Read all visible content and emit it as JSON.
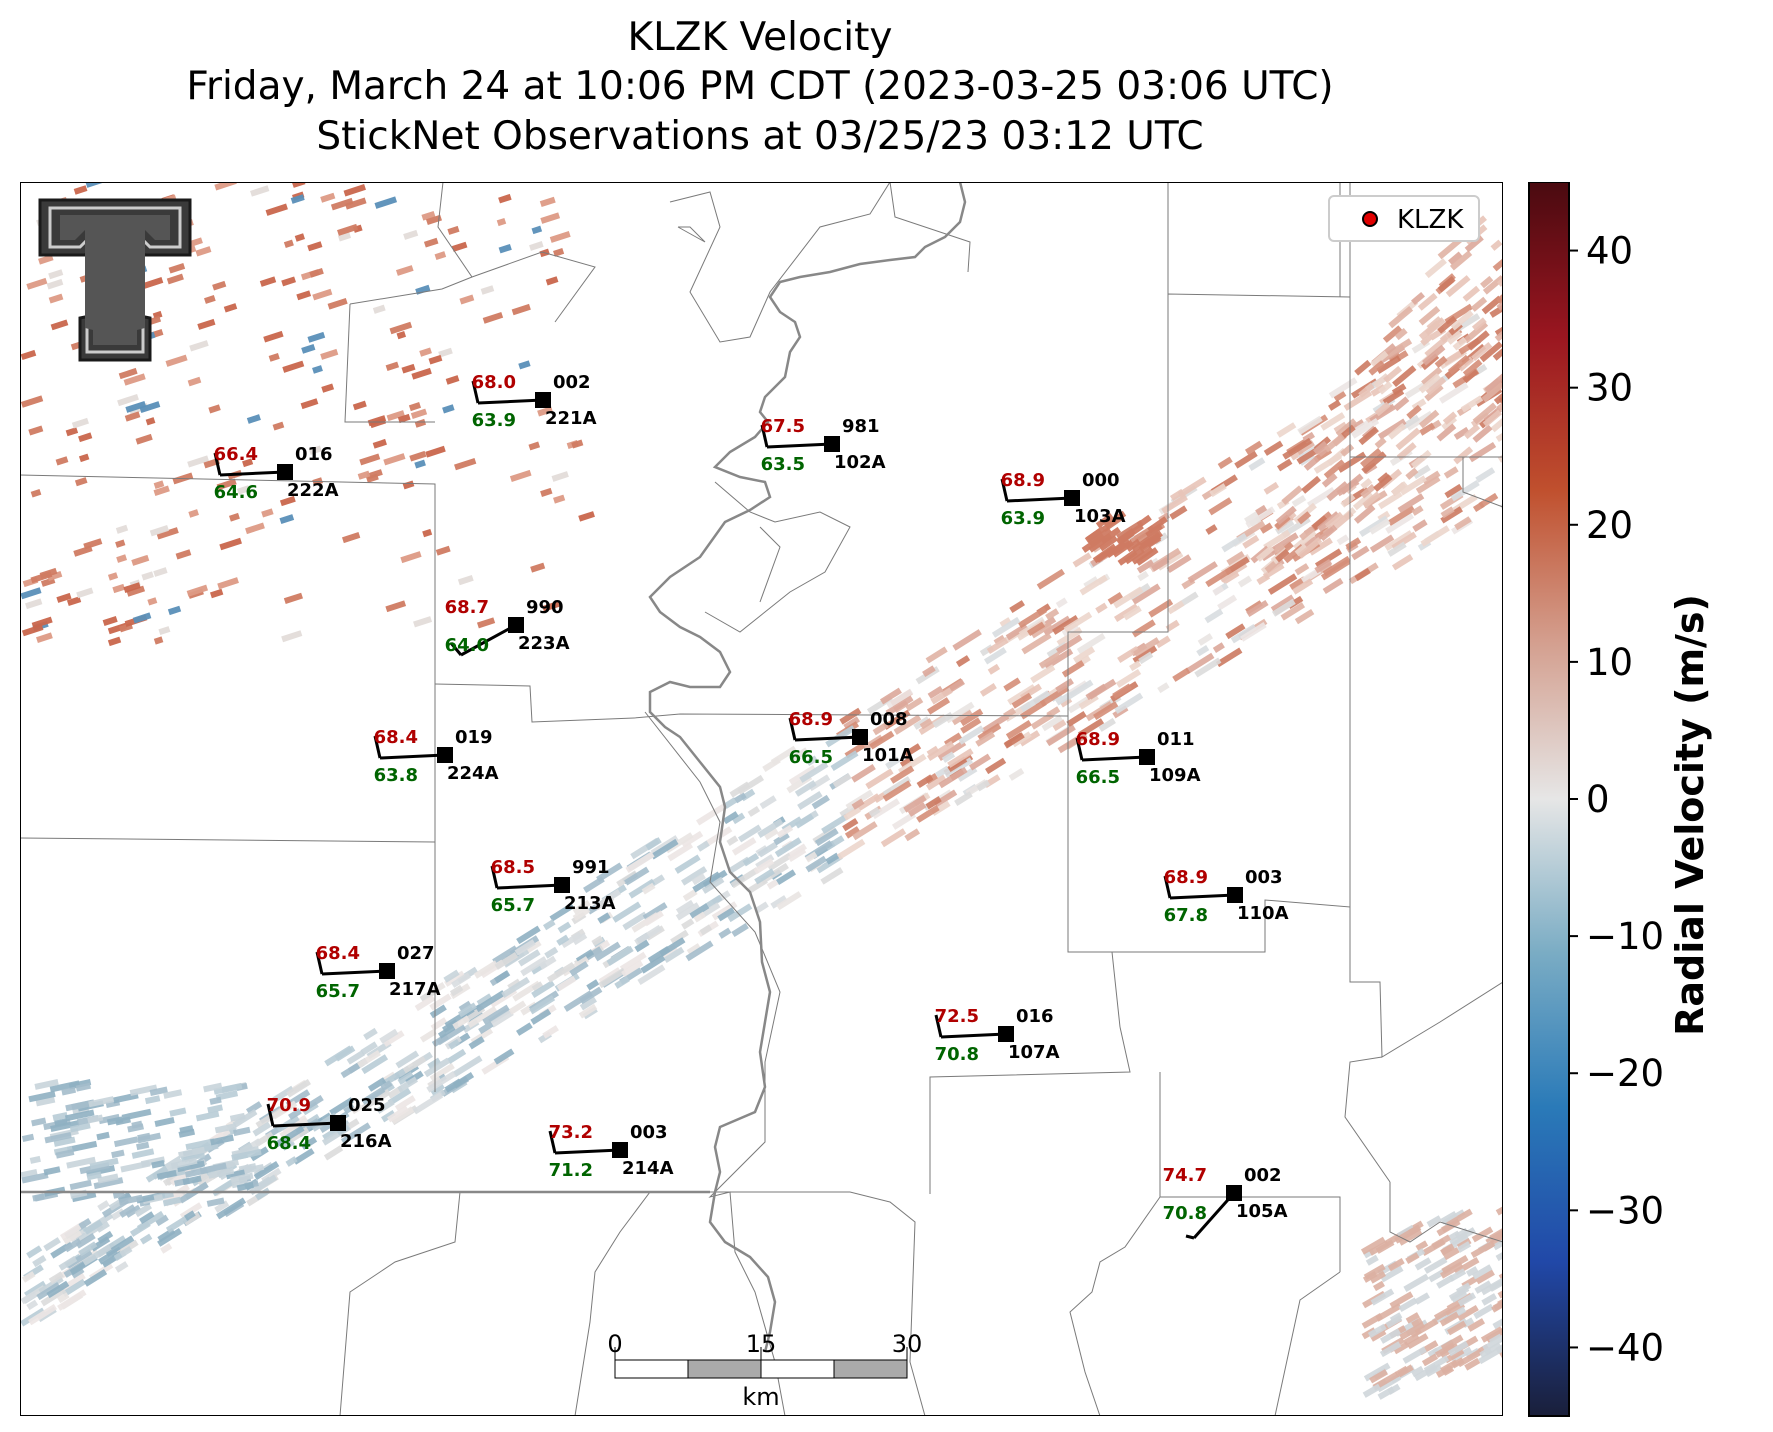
{
  "title": {
    "line1": "KLZK Velocity",
    "line2": "Friday, March 24 at 10:06 PM CDT (2023-03-25 03:06 UTC)",
    "line3": "StickNet Observations at 03/25/23 03:12 UTC"
  },
  "legend": {
    "label": "KLZK",
    "marker_color": "#e00000"
  },
  "scale_bar": {
    "ticks": [
      "0",
      "15",
      "30"
    ],
    "unit": "km"
  },
  "colorbar": {
    "label": "Radial Velocity (m/s)",
    "range": [
      -45,
      45
    ],
    "ticks": [
      "40",
      "30",
      "20",
      "10",
      "0",
      "−10",
      "−20",
      "−30",
      "−40"
    ],
    "colormap_stops": [
      "#1a1f3a",
      "#2148a8",
      "#2a7ab8",
      "#7aacc4",
      "#e6e6e6",
      "#d4a090",
      "#c0502e",
      "#9a1620",
      "#4a0a10"
    ]
  },
  "logo": "texas-tech-double-t",
  "colors": {
    "temperature": "#b00000",
    "dewpoint": "#006400",
    "text": "#000000"
  },
  "stations": [
    {
      "id": "221A",
      "temp": "68.0",
      "dew": "63.9",
      "pres": "002"
    },
    {
      "id": "222A",
      "temp": "66.4",
      "dew": "64.6",
      "pres": "016"
    },
    {
      "id": "102A",
      "temp": "67.5",
      "dew": "63.5",
      "pres": "981"
    },
    {
      "id": "103A",
      "temp": "68.9",
      "dew": "63.9",
      "pres": "000"
    },
    {
      "id": "223A",
      "temp": "68.7",
      "dew": "64.0",
      "pres": "990"
    },
    {
      "id": "224A",
      "temp": "68.4",
      "dew": "63.8",
      "pres": "019"
    },
    {
      "id": "101A",
      "temp": "68.9",
      "dew": "66.5",
      "pres": "008"
    },
    {
      "id": "109A",
      "temp": "68.9",
      "dew": "66.5",
      "pres": "011"
    },
    {
      "id": "213A",
      "temp": "68.5",
      "dew": "65.7",
      "pres": "991"
    },
    {
      "id": "110A",
      "temp": "68.9",
      "dew": "67.8",
      "pres": "003"
    },
    {
      "id": "217A",
      "temp": "68.4",
      "dew": "65.7",
      "pres": "027"
    },
    {
      "id": "107A",
      "temp": "72.5",
      "dew": "70.8",
      "pres": "016"
    },
    {
      "id": "216A",
      "temp": "70.9",
      "dew": "68.4",
      "pres": "025"
    },
    {
      "id": "214A",
      "temp": "73.2",
      "dew": "71.2",
      "pres": "003"
    },
    {
      "id": "105A",
      "temp": "74.7",
      "dew": "70.8",
      "pres": "002"
    }
  ]
}
